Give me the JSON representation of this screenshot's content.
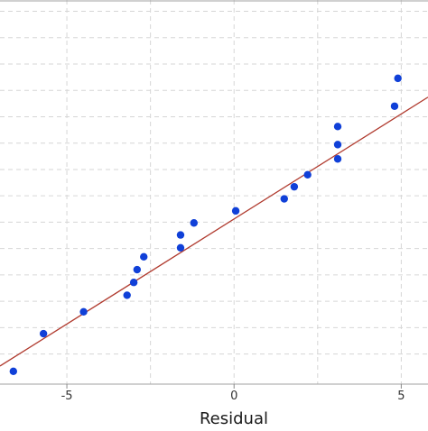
{
  "chart_data": {
    "type": "scatter",
    "title": "",
    "xlabel": "Residual",
    "ylabel": "",
    "xlim": [
      -7,
      5.8
    ],
    "ylim": [
      -2.2,
      2.9
    ],
    "x_ticks": [
      -5,
      0,
      5
    ],
    "x_tick_labels": [
      "-5",
      "0",
      "5"
    ],
    "y_gridlines": [
      2.75,
      2.4,
      2.05,
      1.7,
      1.35,
      1.0,
      0.65,
      0.3,
      -0.05,
      -0.4,
      -0.75,
      -1.1,
      -1.45,
      -1.8
    ],
    "grid": true,
    "legend": "none",
    "series": [
      {
        "marker_color": "#1040d8",
        "points": [
          {
            "x": -6.6,
            "y": -2.03
          },
          {
            "x": -5.7,
            "y": -1.53
          },
          {
            "x": -4.5,
            "y": -1.24
          },
          {
            "x": -3.2,
            "y": -1.02
          },
          {
            "x": -3.0,
            "y": -0.85
          },
          {
            "x": -2.9,
            "y": -0.68
          },
          {
            "x": -2.7,
            "y": -0.51
          },
          {
            "x": -1.6,
            "y": -0.39
          },
          {
            "x": -1.6,
            "y": -0.22
          },
          {
            "x": -1.2,
            "y": -0.06
          },
          {
            "x": 0.05,
            "y": 0.1
          },
          {
            "x": 1.5,
            "y": 0.26
          },
          {
            "x": 1.8,
            "y": 0.42
          },
          {
            "x": 2.2,
            "y": 0.58
          },
          {
            "x": 3.1,
            "y": 0.79
          },
          {
            "x": 3.1,
            "y": 0.98
          },
          {
            "x": 3.1,
            "y": 1.22
          },
          {
            "x": 4.8,
            "y": 1.49
          },
          {
            "x": 4.9,
            "y": 1.86
          }
        ]
      }
    ],
    "fit_line": {
      "color": "#b03a2e",
      "x": [
        -7,
        5.8
      ],
      "y": [
        -1.96,
        1.61
      ]
    }
  }
}
